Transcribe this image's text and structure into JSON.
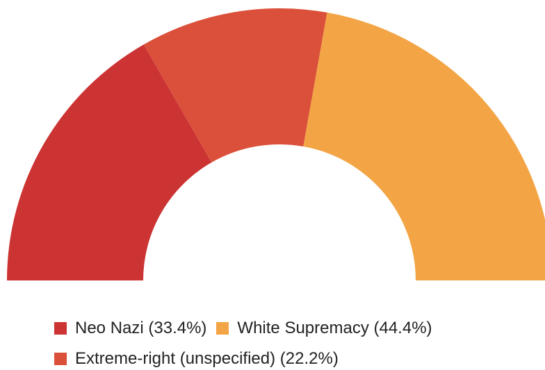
{
  "chart_data": {
    "type": "pie",
    "variant": "semi-donut",
    "slices": [
      {
        "label": "Neo Nazi",
        "value": 33.4,
        "color": "#CC3333"
      },
      {
        "label": "Extreme-right (unspecified)",
        "value": 22.2,
        "color": "#DB503A"
      },
      {
        "label": "White Supremacy",
        "value": 44.4,
        "color": "#F3A546"
      }
    ],
    "legend": {
      "placement": "bottom",
      "row1": [
        {
          "text": "Neo Nazi (33.4%)",
          "color": "#CC3333"
        },
        {
          "text": "White Supremacy (44.4%)",
          "color": "#F3A546"
        }
      ],
      "row2": [
        {
          "text": "Extreme-right (unspecified) (22.2%)",
          "color": "#DB503A"
        }
      ]
    }
  }
}
